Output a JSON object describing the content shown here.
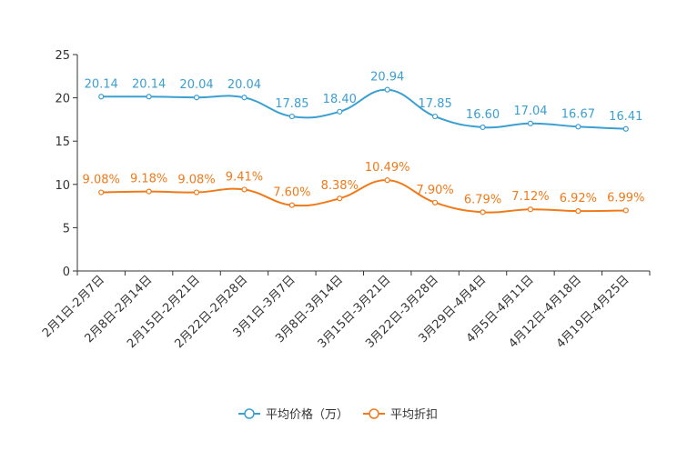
{
  "chart_data": {
    "type": "line",
    "title": "",
    "xlabel": "",
    "ylabel": "",
    "ylim": [
      0,
      25
    ],
    "yticks": [
      0,
      5,
      10,
      15,
      20,
      25
    ],
    "grid": false,
    "legend_position": "bottom-center",
    "categories": [
      "2月1日-2月7日",
      "2月8日-2月14日",
      "2月15日-2月21日",
      "2月22日-2月28日",
      "3月1日-3月7日",
      "3月8日-3月14日",
      "3月15日-3月21日",
      "3月22日-3月28日",
      "3月29日-4月4日",
      "4月5日-4月11日",
      "4月12日-4月18日",
      "4月19日-4月25日"
    ],
    "series": [
      {
        "name": "平均价格（万）",
        "color": "#3b9fd0",
        "values": [
          20.14,
          20.14,
          20.04,
          20.04,
          17.85,
          18.4,
          20.94,
          17.85,
          16.6,
          17.04,
          16.67,
          16.41
        ],
        "labels": [
          "20.14",
          "20.14",
          "20.04",
          "20.04",
          "17.85",
          "18.40",
          "20.94",
          "17.85",
          "16.60",
          "17.04",
          "16.67",
          "16.41"
        ]
      },
      {
        "name": "平均折扣",
        "color": "#f07a1a",
        "values": [
          9.08,
          9.18,
          9.08,
          9.41,
          7.6,
          8.38,
          10.49,
          7.9,
          6.79,
          7.12,
          6.92,
          6.99
        ],
        "labels": [
          "9.08%",
          "9.18%",
          "9.08%",
          "9.41%",
          "7.60%",
          "8.38%",
          "10.49%",
          "7.90%",
          "6.79%",
          "7.12%",
          "6.92%",
          "6.99%"
        ]
      }
    ]
  }
}
